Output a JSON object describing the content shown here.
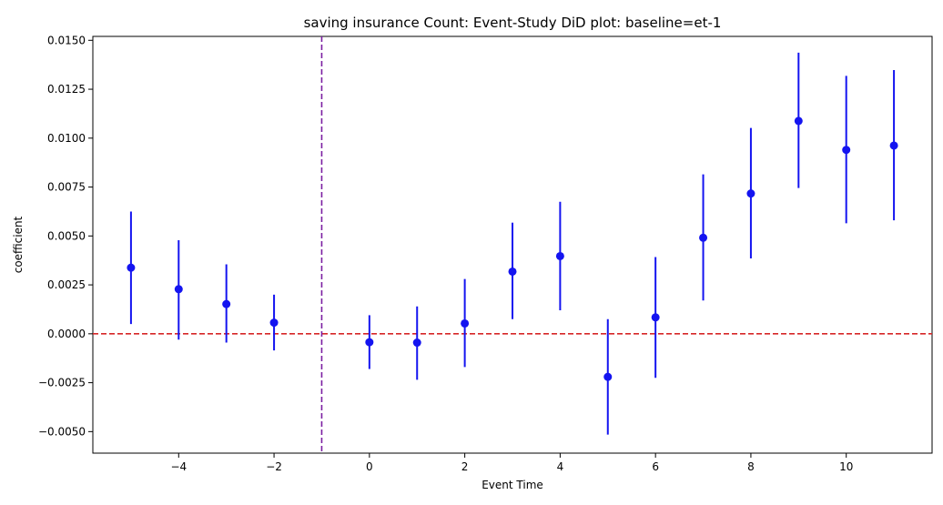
{
  "chart_data": {
    "type": "scatter",
    "title": "saving insurance Count: Event-Study DiD plot: baseline=et-1",
    "xlabel": "Event Time",
    "ylabel": "coefficient",
    "xlim": [
      -5.8,
      11.8
    ],
    "ylim": [
      -0.0061,
      0.0152
    ],
    "xticks": [
      -4,
      -2,
      0,
      2,
      4,
      6,
      8,
      10
    ],
    "xtick_labels": [
      "−4",
      "−2",
      "0",
      "2",
      "4",
      "6",
      "8",
      "10"
    ],
    "yticks": [
      -0.005,
      -0.0025,
      0,
      0.0025,
      0.005,
      0.0075,
      0.01,
      0.0125,
      0.015
    ],
    "ytick_labels": [
      "−0.0050",
      "−0.0025",
      "0.0000",
      "0.0025",
      "0.0050",
      "0.0075",
      "0.0100",
      "0.0125",
      "0.0150"
    ],
    "series": [
      {
        "name": "coefficient",
        "x": [
          -5,
          -4,
          -3,
          -2,
          0,
          1,
          2,
          3,
          4,
          5,
          6,
          7,
          8,
          9,
          10,
          11
        ],
        "y": [
          0.00338,
          0.00228,
          0.00152,
          0.00057,
          -0.00043,
          -0.00045,
          0.00053,
          0.00318,
          0.00397,
          -0.0022,
          0.00084,
          0.00491,
          0.00717,
          0.01088,
          0.0094,
          0.00962
        ],
        "ci_low": [
          0.0005,
          -0.0003,
          -0.00045,
          -0.00085,
          -0.0018,
          -0.00235,
          -0.0017,
          0.00075,
          0.0012,
          -0.00515,
          -0.00225,
          0.0017,
          0.00385,
          0.00745,
          0.00565,
          0.0058
        ],
        "ci_high": [
          0.00625,
          0.00478,
          0.00355,
          0.002,
          0.00095,
          0.0014,
          0.0028,
          0.00568,
          0.00675,
          0.00075,
          0.00392,
          0.00815,
          0.01052,
          0.01437,
          0.01318,
          0.01348
        ]
      }
    ],
    "hline": {
      "y": 0,
      "style": "dashed"
    },
    "vline": {
      "x": -1,
      "style": "dashed"
    },
    "colors": {
      "marker": "#1414f0",
      "errorbar": "#1414f0",
      "hline": "#d62728",
      "vline": "#7b1fa2"
    }
  }
}
